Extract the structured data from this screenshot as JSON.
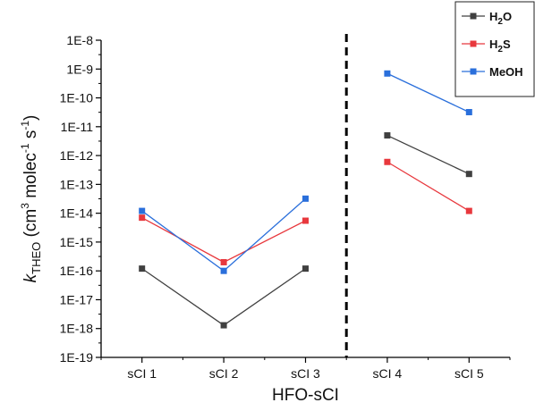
{
  "chart_data": {
    "type": "line",
    "xlabel": "HFO-sCI",
    "ylabel": {
      "main": "k",
      "sub": "THEO",
      "rest": " (cm",
      "sup1": "3",
      "mid": " molec",
      "sup2": "-1",
      "space": " s",
      "sup3": "-1",
      "end": ")"
    },
    "categories": [
      "sCI 1",
      "sCI 2",
      "sCI 3",
      "sCI 4",
      "sCI 5"
    ],
    "yscale": "log",
    "ylim": [
      1e-19,
      1e-08
    ],
    "yticks": [
      "1E-19",
      "1E-18",
      "1E-17",
      "1E-16",
      "1E-15",
      "1E-14",
      "1E-13",
      "1E-12",
      "1E-11",
      "1E-10",
      "1E-9",
      "1E-8"
    ],
    "divider_after_category": 3,
    "segments": [
      [
        0,
        1,
        2
      ],
      [
        3,
        4
      ]
    ],
    "legend_position": "top-right",
    "series": [
      {
        "name_main": "H",
        "name_sub": "2",
        "name_end": "O",
        "color": "#404040",
        "values": [
          1.2e-16,
          1.3e-18,
          1.2e-16,
          5e-12,
          2.3e-13
        ]
      },
      {
        "name_main": "H",
        "name_sub": "2",
        "name_end": "S",
        "color": "#e8383d",
        "values": [
          7e-15,
          2e-16,
          5.5e-15,
          6e-13,
          1.2e-14
        ]
      },
      {
        "name_main": "MeOH",
        "name_sub": "",
        "name_end": "",
        "color": "#2a6fdb",
        "values": [
          1.2e-14,
          1e-16,
          3.2e-14,
          7e-10,
          3.2e-11
        ]
      }
    ]
  }
}
